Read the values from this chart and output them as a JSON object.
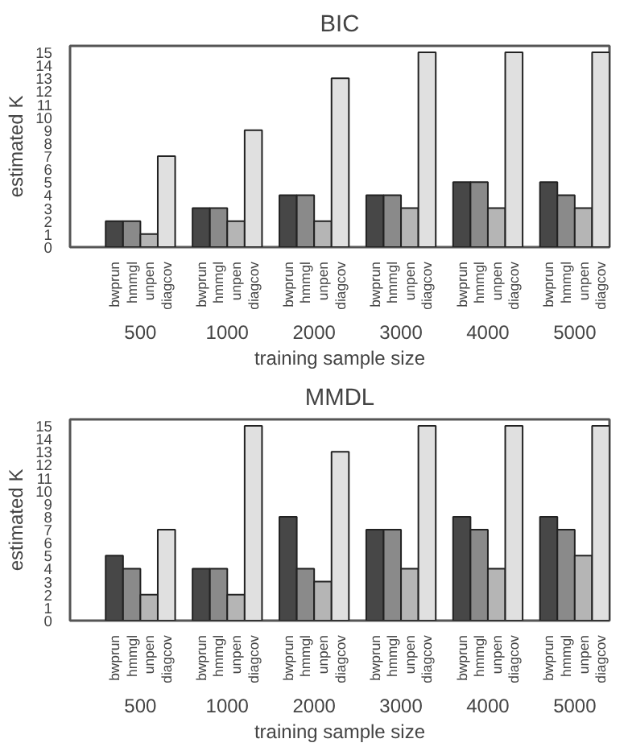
{
  "chart_data": [
    {
      "type": "bar",
      "title": "BIC",
      "xlabel": "training sample size",
      "ylabel": "estimated K",
      "categories": [
        "500",
        "1000",
        "2000",
        "3000",
        "4000",
        "5000"
      ],
      "ylim": [
        0,
        15.5
      ],
      "yticks": [
        0,
        1,
        2,
        3,
        4,
        5,
        6,
        7,
        8,
        9,
        10,
        11,
        12,
        13,
        14,
        15
      ],
      "series": [
        {
          "name": "bwprun",
          "color": "#474747",
          "values": [
            2,
            3,
            4,
            4,
            5,
            5
          ]
        },
        {
          "name": "hmmgl",
          "color": "#8a8a8a",
          "values": [
            2,
            3,
            4,
            4,
            5,
            4
          ]
        },
        {
          "name": "unpen",
          "color": "#b5b5b5",
          "values": [
            1,
            2,
            2,
            3,
            3,
            3
          ]
        },
        {
          "name": "diagcov",
          "color": "#e0e0e0",
          "values": [
            7,
            9,
            13,
            15,
            15,
            15
          ]
        }
      ]
    },
    {
      "type": "bar",
      "title": "MMDL",
      "xlabel": "training sample size",
      "ylabel": "estimated K",
      "categories": [
        "500",
        "1000",
        "2000",
        "3000",
        "4000",
        "5000"
      ],
      "ylim": [
        0,
        15.5
      ],
      "yticks": [
        0,
        1,
        2,
        3,
        4,
        5,
        6,
        7,
        8,
        9,
        10,
        11,
        12,
        13,
        14,
        15
      ],
      "series": [
        {
          "name": "bwprun",
          "color": "#474747",
          "values": [
            5,
            4,
            8,
            7,
            8,
            8
          ]
        },
        {
          "name": "hmmgl",
          "color": "#8a8a8a",
          "values": [
            4,
            4,
            4,
            7,
            7,
            7
          ]
        },
        {
          "name": "unpen",
          "color": "#b5b5b5",
          "values": [
            2,
            2,
            3,
            4,
            4,
            5
          ]
        },
        {
          "name": "diagcov",
          "color": "#e0e0e0",
          "values": [
            7,
            15,
            13,
            15,
            15,
            15
          ]
        }
      ]
    }
  ]
}
